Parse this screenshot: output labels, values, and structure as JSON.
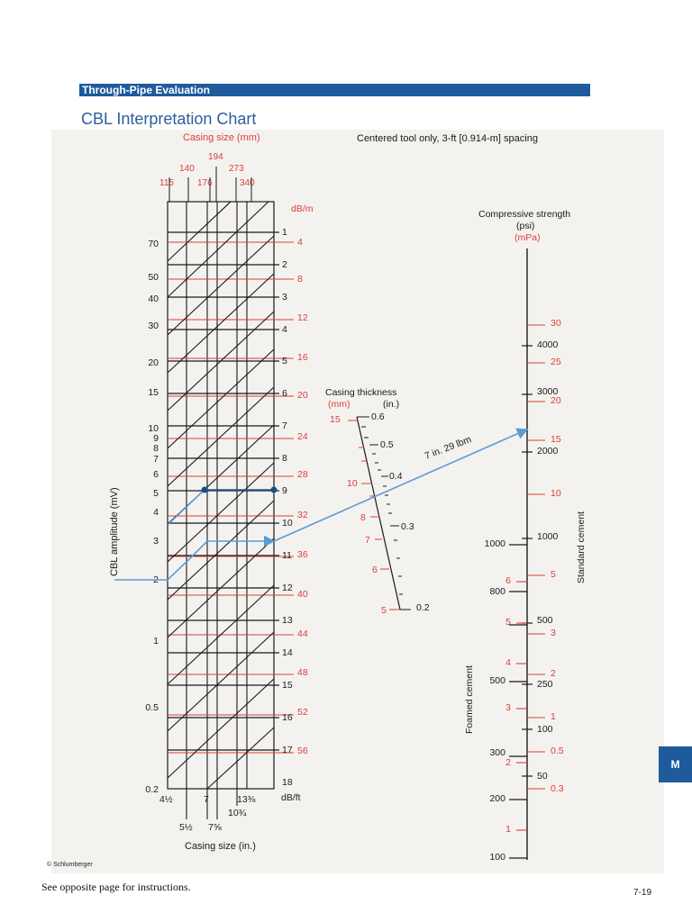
{
  "header": {
    "section": "Through-Pipe Evaluation",
    "title": "CBL Interpretation Chart"
  },
  "chart": {
    "subtitle": "Centered tool only, 3-ft [0.914-m] spacing",
    "casing_size_mm": {
      "label": "Casing size (mm)",
      "ticks": [
        "115",
        "140",
        "194",
        "176",
        "273",
        "340"
      ]
    },
    "casing_size_in": {
      "label": "Casing size (in.)",
      "ticks": [
        "4½",
        "7",
        "13⅜",
        "10¾",
        "5½",
        "7⅝"
      ]
    },
    "cbl_amplitude": {
      "label": "CBL amplitude (mV)",
      "ticks": [
        "70",
        "50",
        "40",
        "30",
        "20",
        "15",
        "10",
        "9",
        "8",
        "7",
        "6",
        "5",
        "4",
        "3",
        "2",
        "1",
        "0.5",
        "0.2"
      ]
    },
    "attenuation_db_ft": {
      "label": "dB/ft",
      "ticks": [
        "1",
        "2",
        "3",
        "4",
        "5",
        "6",
        "7",
        "8",
        "9",
        "10",
        "11",
        "12",
        "13",
        "14",
        "15",
        "16",
        "17",
        "18"
      ]
    },
    "attenuation_db_m": {
      "label": "dB/m",
      "ticks": [
        "4",
        "8",
        "12",
        "16",
        "20",
        "24",
        "28",
        "32",
        "36",
        "40",
        "44",
        "48",
        "52",
        "56"
      ]
    },
    "casing_thickness": {
      "label": "Casing thickness",
      "unit_mm": "(mm)",
      "unit_in": "(in.)",
      "mm_ticks": [
        "15",
        "10",
        "8",
        "7",
        "6",
        "5"
      ],
      "in_ticks": [
        "0.6",
        "0.5",
        "0.4",
        "0.3",
        "0.2"
      ]
    },
    "compressive_strength": {
      "label": "Compressive strength",
      "unit_psi": "(psi)",
      "unit_mpa": "(mPa)",
      "standard_psi": [
        "4000",
        "3000",
        "2000",
        "1000",
        "500",
        "250",
        "100",
        "50"
      ],
      "standard_mpa": [
        "30",
        "25",
        "20",
        "15",
        "10",
        "5",
        "3",
        "2",
        "1",
        "0.5",
        "0.3"
      ],
      "foamed_psi": [
        "1000",
        "800",
        "500",
        "300",
        "200",
        "100"
      ],
      "foamed_mpa": [
        "6",
        "5",
        "4",
        "3",
        "2",
        "1"
      ],
      "standard_label": "Standard cement",
      "foamed_label": "Foamed cement"
    },
    "example_label": "7 in. 29 lbm",
    "colors": {
      "black": "#1a1a1a",
      "red": "#d8403a",
      "blue": "#5b9bd5",
      "navy": "#1e4d8c"
    }
  },
  "footer": {
    "copyright": "© Schlumberger",
    "instructions": "See opposite page for instructions.",
    "page_number": "7-19",
    "tab": "M"
  }
}
